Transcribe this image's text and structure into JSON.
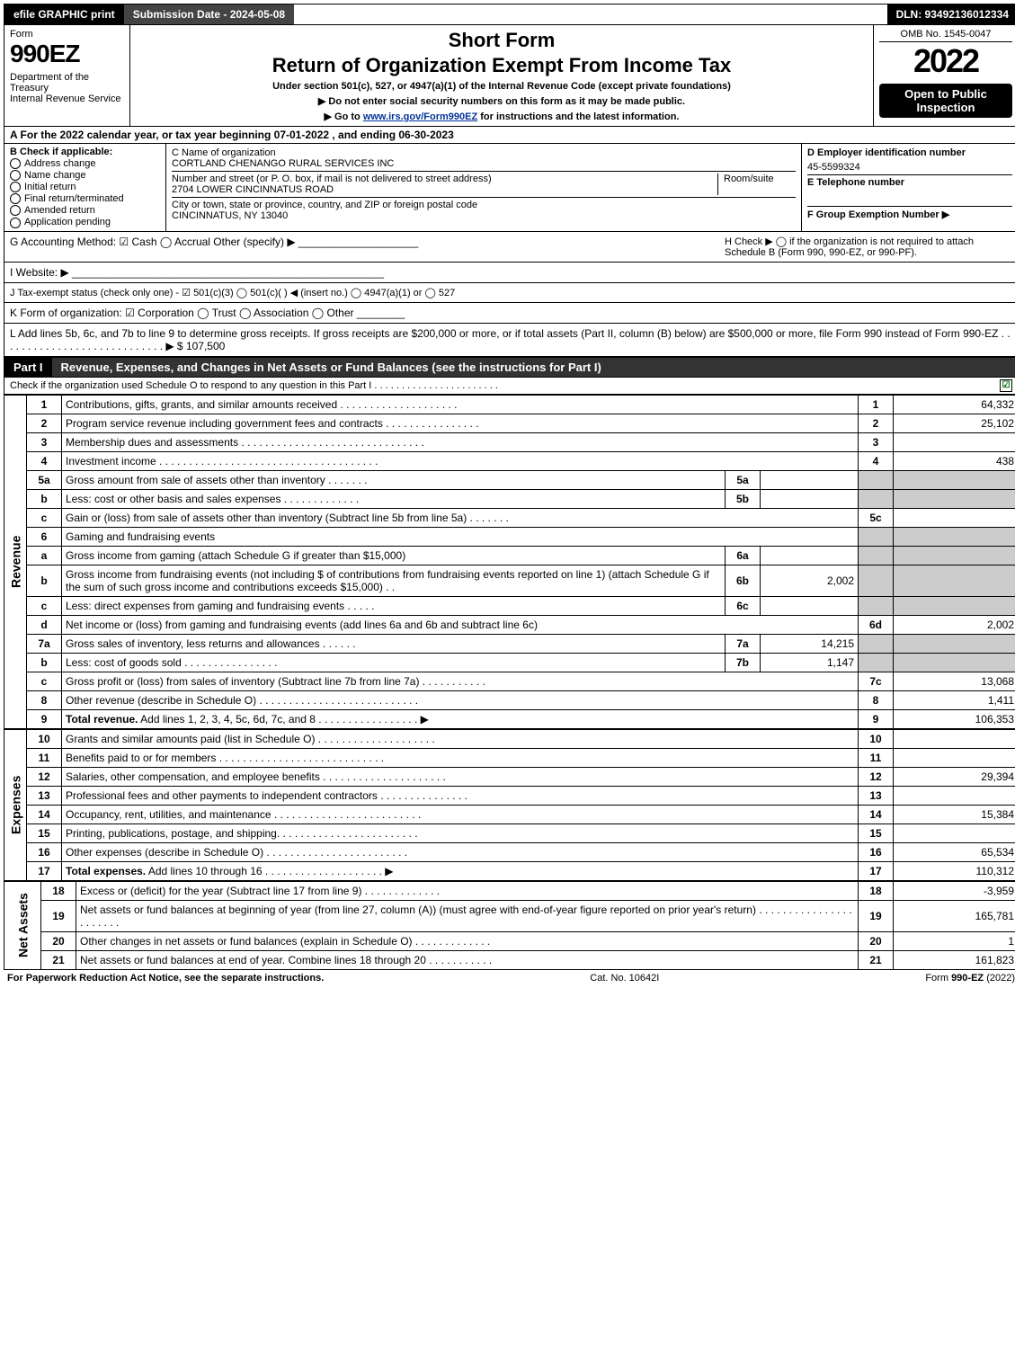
{
  "top": {
    "efile": "efile GRAPHIC print",
    "submission": "Submission Date - 2024-05-08",
    "dln": "DLN: 93492136012334"
  },
  "header": {
    "form_label": "Form",
    "form_num": "990EZ",
    "dept": "Department of the Treasury\nInternal Revenue Service",
    "short_form": "Short Form",
    "return_title": "Return of Organization Exempt From Income Tax",
    "subline": "Under section 501(c), 527, or 4947(a)(1) of the Internal Revenue Code (except private foundations)",
    "sub2": "▶ Do not enter social security numbers on this form as it may be made public.",
    "sub3_prefix": "▶ Go to ",
    "sub3_link": "www.irs.gov/Form990EZ",
    "sub3_suffix": " for instructions and the latest information.",
    "omb": "OMB No. 1545-0047",
    "year": "2022",
    "open": "Open to Public Inspection"
  },
  "sectionA": "A  For the 2022 calendar year, or tax year beginning 07-01-2022 , and ending 06-30-2023",
  "B": {
    "label": "B  Check if applicable:",
    "items": [
      "Address change",
      "Name change",
      "Initial return",
      "Final return/terminated",
      "Amended return",
      "Application pending"
    ]
  },
  "C": {
    "name_label": "C Name of organization",
    "name": "CORTLAND CHENANGO RURAL SERVICES INC",
    "street_label": "Number and street (or P. O. box, if mail is not delivered to street address)",
    "room_label": "Room/suite",
    "street": "2704 LOWER CINCINNATUS ROAD",
    "city_label": "City or town, state or province, country, and ZIP or foreign postal code",
    "city": "CINCINNATUS, NY  13040"
  },
  "D": {
    "ein_label": "D Employer identification number",
    "ein": "45-5599324",
    "tel_label": "E Telephone number",
    "tel": "",
    "group_label": "F Group Exemption Number  ▶",
    "group": ""
  },
  "G": "G Accounting Method:   ☑ Cash   ◯ Accrual   Other (specify) ▶ ____________________",
  "H": "H  Check ▶  ◯  if the organization is not required to attach Schedule B (Form 990, 990-EZ, or 990-PF).",
  "I": "I Website: ▶ ____________________________________________________",
  "J": "J Tax-exempt status (check only one) - ☑ 501(c)(3)  ◯ 501(c)(  ) ◀ (insert no.)  ◯ 4947(a)(1) or  ◯ 527",
  "K": "K Form of organization:  ☑ Corporation  ◯ Trust  ◯ Association  ◯ Other  ________",
  "L": {
    "text": "L Add lines 5b, 6c, and 7b to line 9 to determine gross receipts. If gross receipts are $200,000 or more, or if total assets (Part II, column (B) below) are $500,000 or more, file Form 990 instead of Form 990-EZ . . . . . . . . . . . . . . . . . . . . . . . . . . . . ▶ $",
    "amount": "107,500"
  },
  "partI": {
    "label": "Part I",
    "title": "Revenue, Expenses, and Changes in Net Assets or Fund Balances (see the instructions for Part I)",
    "subline": "Check if the organization used Schedule O to respond to any question in this Part I . . . . . . . . . . . . . . . . . . . . . . .",
    "checked": "☑"
  },
  "revenue": {
    "side": "Revenue",
    "rows": [
      {
        "n": "1",
        "t": "Contributions, gifts, grants, and similar amounts received . . . . . . . . . . . . . . . . . . . .",
        "rn": "1",
        "rv": "64,332"
      },
      {
        "n": "2",
        "t": "Program service revenue including government fees and contracts . . . . . . . . . . . . . . . .",
        "rn": "2",
        "rv": "25,102"
      },
      {
        "n": "3",
        "t": "Membership dues and assessments . . . . . . . . . . . . . . . . . . . . . . . . . . . . . . .",
        "rn": "3",
        "rv": ""
      },
      {
        "n": "4",
        "t": "Investment income . . . . . . . . . . . . . . . . . . . . . . . . . . . . . . . . . . . . .",
        "rn": "4",
        "rv": "438"
      },
      {
        "n": "5a",
        "t": "Gross amount from sale of assets other than inventory . . . . . . .",
        "mn": "5a",
        "mv": "",
        "grey": true
      },
      {
        "n": "b",
        "t": "Less: cost or other basis and sales expenses . . . . . . . . . . . . .",
        "mn": "5b",
        "mv": "",
        "grey": true
      },
      {
        "n": "c",
        "t": "Gain or (loss) from sale of assets other than inventory (Subtract line 5b from line 5a) . . . . . . .",
        "rn": "5c",
        "rv": ""
      },
      {
        "n": "6",
        "t": "Gaming and fundraising events",
        "grey": true,
        "noRight": true
      },
      {
        "n": "a",
        "t": "Gross income from gaming (attach Schedule G if greater than $15,000)",
        "mn": "6a",
        "mv": "",
        "grey": true
      },
      {
        "n": "b",
        "t": "Gross income from fundraising events (not including $                      of contributions from fundraising events reported on line 1) (attach Schedule G if the sum of such gross income and contributions exceeds $15,000)   . .",
        "mn": "6b",
        "mv": "2,002",
        "grey": true
      },
      {
        "n": "c",
        "t": "Less: direct expenses from gaming and fundraising events   . . . . .",
        "mn": "6c",
        "mv": "",
        "grey": true
      },
      {
        "n": "d",
        "t": "Net income or (loss) from gaming and fundraising events (add lines 6a and 6b and subtract line 6c)",
        "rn": "6d",
        "rv": "2,002"
      },
      {
        "n": "7a",
        "t": "Gross sales of inventory, less returns and allowances . . . . . .",
        "mn": "7a",
        "mv": "14,215",
        "grey": true
      },
      {
        "n": "b",
        "t": "Less: cost of goods sold     . . . . . . . . . . . . . . . .",
        "mn": "7b",
        "mv": "1,147",
        "grey": true
      },
      {
        "n": "c",
        "t": "Gross profit or (loss) from sales of inventory (Subtract line 7b from line 7a) . . . . . . . . . . .",
        "rn": "7c",
        "rv": "13,068"
      },
      {
        "n": "8",
        "t": "Other revenue (describe in Schedule O) . . . . . . . . . . . . . . . . . . . . . . . . . . .",
        "rn": "8",
        "rv": "1,411"
      },
      {
        "n": "9",
        "t": "Total revenue. Add lines 1, 2, 3, 4, 5c, 6d, 7c, and 8  . . . . . . . . . . . . . . . . . ▶",
        "rn": "9",
        "rv": "106,353",
        "bold": true
      }
    ]
  },
  "expenses": {
    "side": "Expenses",
    "rows": [
      {
        "n": "10",
        "t": "Grants and similar amounts paid (list in Schedule O) . . . . . . . . . . . . . . . . . . . .",
        "rn": "10",
        "rv": ""
      },
      {
        "n": "11",
        "t": "Benefits paid to or for members    . . . . . . . . . . . . . . . . . . . . . . . . . . . .",
        "rn": "11",
        "rv": ""
      },
      {
        "n": "12",
        "t": "Salaries, other compensation, and employee benefits . . . . . . . . . . . . . . . . . . . . .",
        "rn": "12",
        "rv": "29,394"
      },
      {
        "n": "13",
        "t": "Professional fees and other payments to independent contractors . . . . . . . . . . . . . . .",
        "rn": "13",
        "rv": ""
      },
      {
        "n": "14",
        "t": "Occupancy, rent, utilities, and maintenance . . . . . . . . . . . . . . . . . . . . . . . . .",
        "rn": "14",
        "rv": "15,384"
      },
      {
        "n": "15",
        "t": "Printing, publications, postage, and shipping. . . . . . . . . . . . . . . . . . . . . . . .",
        "rn": "15",
        "rv": ""
      },
      {
        "n": "16",
        "t": "Other expenses (describe in Schedule O)    . . . . . . . . . . . . . . . . . . . . . . . .",
        "rn": "16",
        "rv": "65,534"
      },
      {
        "n": "17",
        "t": "Total expenses. Add lines 10 through 16    . . . . . . . . . . . . . . . . . . . . ▶",
        "rn": "17",
        "rv": "110,312",
        "bold": true
      }
    ]
  },
  "netassets": {
    "side": "Net Assets",
    "rows": [
      {
        "n": "18",
        "t": "Excess or (deficit) for the year (Subtract line 17 from line 9)     . . . . . . . . . . . . .",
        "rn": "18",
        "rv": "-3,959"
      },
      {
        "n": "19",
        "t": "Net assets or fund balances at beginning of year (from line 27, column (A)) (must agree with end-of-year figure reported on prior year's return) . . . . . . . . . . . . . . . . . . . . . . .",
        "rn": "19",
        "rv": "165,781"
      },
      {
        "n": "20",
        "t": "Other changes in net assets or fund balances (explain in Schedule O) . . . . . . . . . . . . .",
        "rn": "20",
        "rv": "1"
      },
      {
        "n": "21",
        "t": "Net assets or fund balances at end of year. Combine lines 18 through 20 . . . . . . . . . . .",
        "rn": "21",
        "rv": "161,823"
      }
    ]
  },
  "footer": {
    "left": "For Paperwork Reduction Act Notice, see the separate instructions.",
    "mid": "Cat. No. 10642I",
    "right": "Form 990-EZ (2022)"
  }
}
